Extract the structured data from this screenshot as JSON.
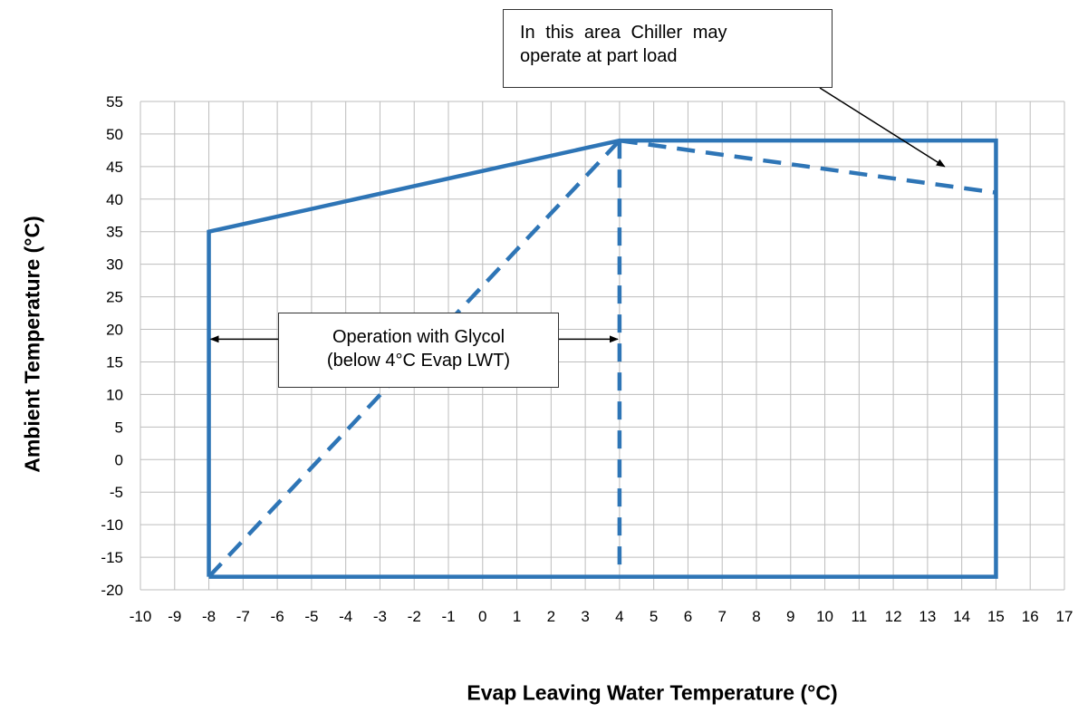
{
  "chart_data": {
    "type": "line",
    "xlabel": "Evap Leaving Water Temperature (°C)",
    "ylabel": "Ambient Temperature (°C)",
    "xlim": [
      -10,
      17
    ],
    "ylim": [
      -20,
      55
    ],
    "x_ticks": [
      -10,
      -9,
      -8,
      -7,
      -6,
      -5,
      -4,
      -3,
      -2,
      -1,
      0,
      1,
      2,
      3,
      4,
      5,
      6,
      7,
      8,
      9,
      10,
      11,
      12,
      13,
      14,
      15,
      16,
      17
    ],
    "y_ticks": [
      -20,
      -15,
      -10,
      -5,
      0,
      5,
      10,
      15,
      20,
      25,
      30,
      35,
      40,
      45,
      50,
      55
    ],
    "grid": true,
    "color": "#2e75b6",
    "series": [
      {
        "style": "solid",
        "points": [
          [
            -8,
            -18
          ],
          [
            -8,
            35
          ],
          [
            4,
            49
          ],
          [
            15,
            49
          ],
          [
            15,
            -18
          ],
          [
            -8,
            -18
          ]
        ]
      },
      {
        "style": "dashed",
        "points": [
          [
            -8,
            -18
          ],
          [
            4,
            49
          ]
        ]
      },
      {
        "style": "dashed",
        "points": [
          [
            4,
            49
          ],
          [
            4,
            -18
          ]
        ]
      },
      {
        "style": "dashed",
        "points": [
          [
            4,
            49
          ],
          [
            15,
            41
          ]
        ]
      }
    ],
    "annotations": [
      {
        "id": "part_load",
        "lines": [
          "In this area Chiller may",
          "operate at part load"
        ],
        "arrow_to": [
          13.5,
          45
        ]
      },
      {
        "id": "glycol",
        "lines": [
          "Operation with Glycol",
          "(below 4°C Evap LWT)"
        ],
        "arrows_to": [
          [
            -8,
            18.5
          ],
          [
            4,
            18.5
          ]
        ]
      }
    ]
  }
}
